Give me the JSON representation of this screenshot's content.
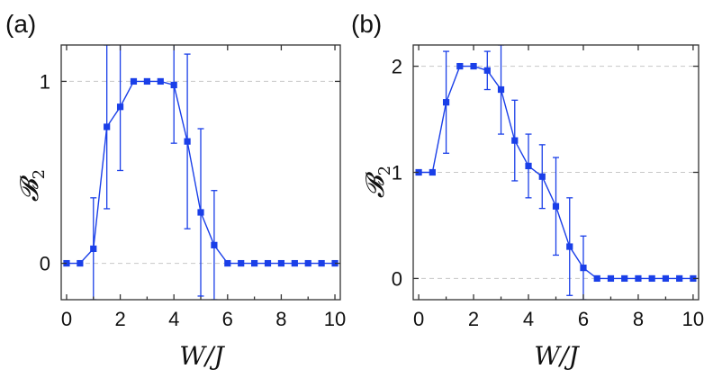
{
  "chart_data": [
    {
      "panel": "(a)",
      "type": "line",
      "xlabel": "W/J",
      "ylabel": "𝓑₂",
      "xlim": [
        -0.2,
        10.2
      ],
      "ylim": [
        -0.2,
        1.2
      ],
      "xticks": [
        0,
        2,
        4,
        6,
        8,
        10
      ],
      "yticks": [
        0,
        1
      ],
      "xtick_labels": [
        "0",
        "2",
        "4",
        "6",
        "8",
        "10"
      ],
      "ytick_labels": [
        "0",
        "1"
      ],
      "grid": "horizontal dashed",
      "series": [
        {
          "name": "B2",
          "color": "#1a3fe8",
          "x": [
            0,
            0.5,
            1,
            1.5,
            2,
            2.5,
            3,
            3.5,
            4,
            4.5,
            5,
            5.5,
            6,
            6.5,
            7,
            7.5,
            8,
            8.5,
            9,
            9.5,
            10
          ],
          "y": [
            0,
            0,
            0.08,
            0.75,
            0.86,
            1.0,
            1.0,
            1.0,
            0.98,
            0.67,
            0.28,
            0.1,
            0,
            0,
            0,
            0,
            0,
            0,
            0,
            0,
            0
          ],
          "yerr": [
            0,
            0,
            0.28,
            0.45,
            0.35,
            0,
            0,
            0,
            0.32,
            0.48,
            0.46,
            0.3,
            0,
            0,
            0,
            0,
            0,
            0,
            0,
            0,
            0
          ]
        }
      ]
    },
    {
      "panel": "(b)",
      "type": "line",
      "xlabel": "W/J",
      "ylabel": "𝓑₂",
      "xlim": [
        -0.2,
        10.2
      ],
      "ylim": [
        -0.2,
        2.2
      ],
      "xticks": [
        0,
        2,
        4,
        6,
        8,
        10
      ],
      "yticks": [
        0,
        1,
        2
      ],
      "xtick_labels": [
        "0",
        "2",
        "4",
        "6",
        "8",
        "10"
      ],
      "ytick_labels": [
        "0",
        "1",
        "2"
      ],
      "grid": "horizontal dashed",
      "series": [
        {
          "name": "B2",
          "color": "#1a3fe8",
          "x": [
            0,
            0.5,
            1,
            1.5,
            2,
            2.5,
            3,
            3.5,
            4,
            4.5,
            5,
            5.5,
            6,
            6.5,
            7,
            7.5,
            8,
            8.5,
            9,
            9.5,
            10
          ],
          "y": [
            1.0,
            1.0,
            1.66,
            2.0,
            2.0,
            1.96,
            1.78,
            1.3,
            1.06,
            0.96,
            0.68,
            0.3,
            0.1,
            0,
            0,
            0,
            0,
            0,
            0,
            0,
            0
          ],
          "yerr": [
            0,
            0,
            0.48,
            0,
            0,
            0.18,
            0.42,
            0.38,
            0.3,
            0.3,
            0.46,
            0.46,
            0.3,
            0,
            0,
            0,
            0,
            0,
            0,
            0,
            0
          ]
        }
      ]
    }
  ]
}
